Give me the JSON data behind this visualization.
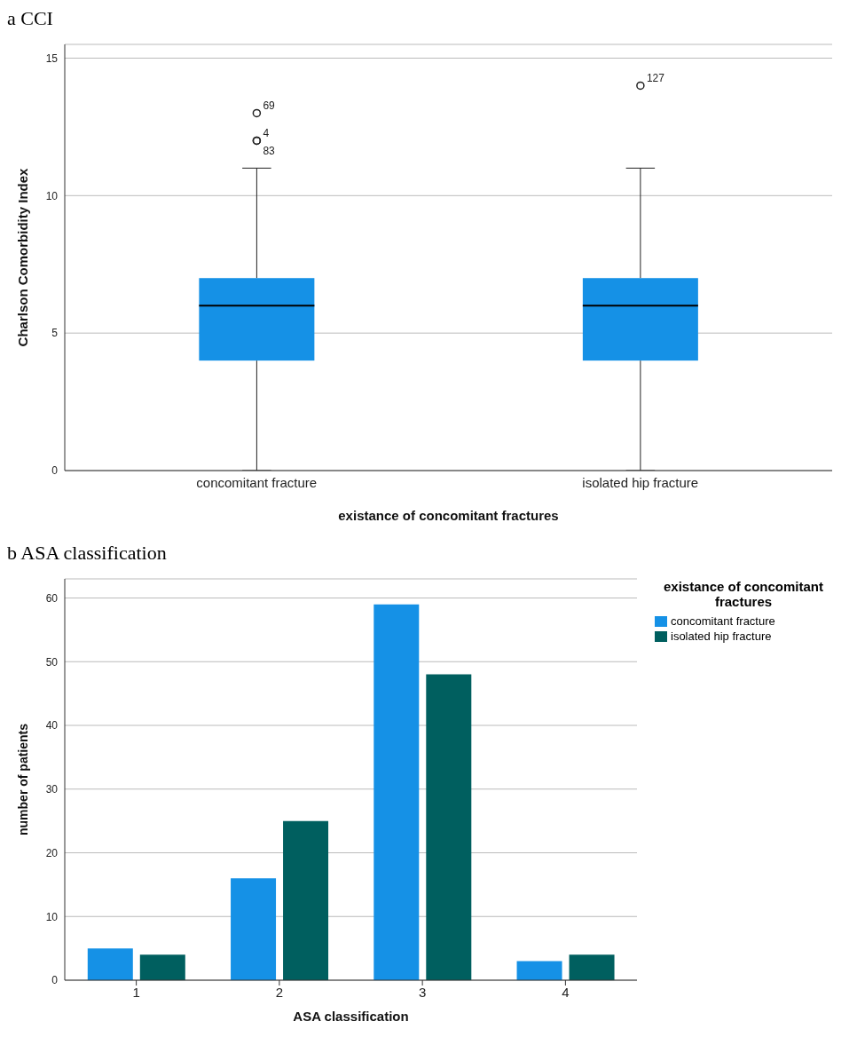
{
  "chart_data": [
    {
      "type": "box",
      "title": "a CCI",
      "xlabel": "existance of concomitant fractures",
      "ylabel": "Charlson Comorbidity Index",
      "categories": [
        "concomitant fracture",
        "isolated hip fracture"
      ],
      "color": "#1591e6",
      "boxes": [
        {
          "low": 0,
          "q1": 4,
          "median": 6,
          "q3": 7,
          "high": 11,
          "outliers": [
            13,
            12,
            12
          ]
        },
        {
          "low": 0,
          "q1": 4,
          "median": 6,
          "q3": 7,
          "high": 11,
          "outliers": [
            14
          ]
        }
      ],
      "ylim": [
        0,
        15.5
      ],
      "yticks": [
        0,
        5,
        10,
        15
      ],
      "grid": "y",
      "annotations": [
        "69",
        "4",
        "83",
        "127"
      ]
    },
    {
      "type": "bar",
      "title": "b ASA classification",
      "xlabel": "ASA classification",
      "ylabel": "number of patients",
      "legend_title": "existance of concomitant fractures",
      "categories": [
        "1",
        "2",
        "3",
        "4"
      ],
      "series": [
        {
          "name": "concomitant fracture",
          "color": "#1591e6",
          "values": [
            5,
            16,
            59,
            3
          ]
        },
        {
          "name": "isolated hip fracture",
          "color": "#005f5f",
          "values": [
            4,
            25,
            48,
            4
          ]
        }
      ],
      "ylim": [
        0,
        63
      ],
      "yticks": [
        0,
        10,
        20,
        30,
        40,
        50,
        60
      ],
      "grid": "y",
      "legend": "top right"
    }
  ]
}
